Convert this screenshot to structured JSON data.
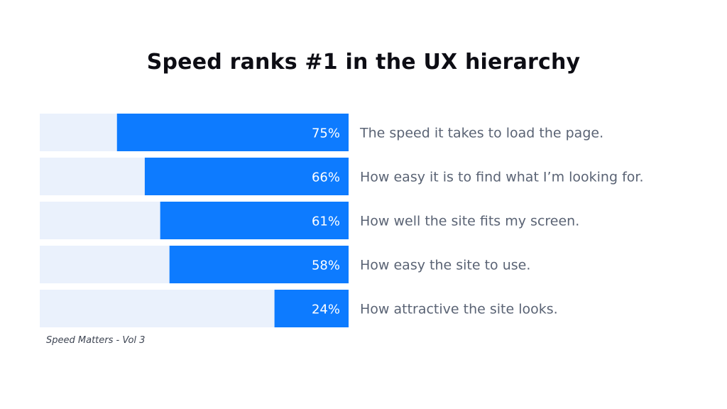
{
  "title": "Speed ranks #1 in the UX hierarchy",
  "source": "Speed Matters - Vol 3",
  "colors": {
    "bar": "#0d7bff",
    "track": "#eaf1fc",
    "value_text": "#ffffff",
    "label_text": "#5a6374"
  },
  "chart_data": {
    "type": "bar",
    "orientation": "horizontal",
    "title": "Speed ranks #1 in the UX hierarchy",
    "categories": [
      "The speed it takes to load the page.",
      "How easy it is to find what I’m looking for.",
      "How well the site fits my screen.",
      "How easy the site to use.",
      "How attractive the site looks."
    ],
    "values": [
      75,
      66,
      61,
      58,
      24
    ],
    "data_labels": [
      "75%",
      "66%",
      "61%",
      "58%",
      "24%"
    ],
    "unit": "%",
    "xlim": [
      0,
      100
    ],
    "grid": false,
    "legend": "none"
  }
}
